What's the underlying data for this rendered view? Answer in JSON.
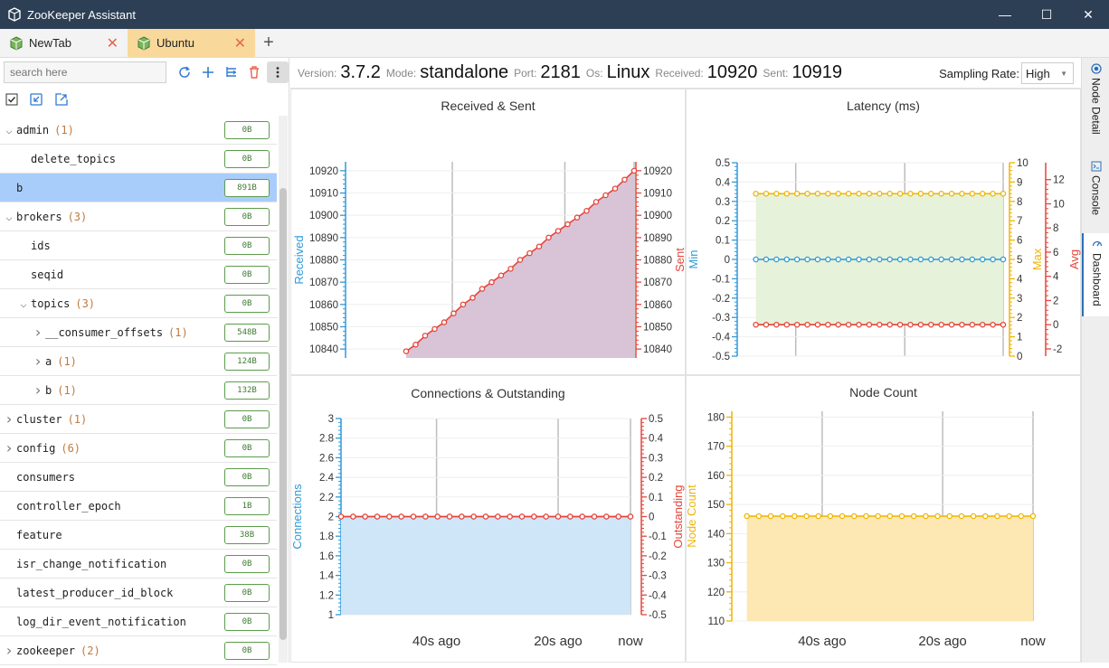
{
  "app": {
    "title": "ZooKeeper Assistant"
  },
  "window": {
    "minimize": "—",
    "maximize": "☐",
    "close": "✕"
  },
  "tabs": [
    {
      "label": "NewTab"
    },
    {
      "label": "Ubuntu"
    }
  ],
  "tab_add": "+",
  "sidebar": {
    "search_placeholder": "search here",
    "nodes": [
      {
        "name": "admin",
        "count": "(1)",
        "size": "0B",
        "level": 0,
        "chevron": "down"
      },
      {
        "name": "delete_topics",
        "count": "",
        "size": "0B",
        "level": 1,
        "chevron": ""
      },
      {
        "name": "b",
        "count": "",
        "size": "891B",
        "level": 0,
        "chevron": "",
        "selected": true
      },
      {
        "name": "brokers",
        "count": "(3)",
        "size": "0B",
        "level": 0,
        "chevron": "down"
      },
      {
        "name": "ids",
        "count": "",
        "size": "0B",
        "level": 1,
        "chevron": ""
      },
      {
        "name": "seqid",
        "count": "",
        "size": "0B",
        "level": 1,
        "chevron": ""
      },
      {
        "name": "topics",
        "count": "(3)",
        "size": "0B",
        "level": 1,
        "chevron": "down"
      },
      {
        "name": "__consumer_offsets",
        "count": "(1)",
        "size": "548B",
        "level": 2,
        "chevron": "right"
      },
      {
        "name": "a",
        "count": "(1)",
        "size": "124B",
        "level": 2,
        "chevron": "right"
      },
      {
        "name": "b",
        "count": "(1)",
        "size": "132B",
        "level": 2,
        "chevron": "right"
      },
      {
        "name": "cluster",
        "count": "(1)",
        "size": "0B",
        "level": 0,
        "chevron": "right"
      },
      {
        "name": "config",
        "count": "(6)",
        "size": "0B",
        "level": 0,
        "chevron": "right"
      },
      {
        "name": "consumers",
        "count": "",
        "size": "0B",
        "level": 0,
        "chevron": ""
      },
      {
        "name": "controller_epoch",
        "count": "",
        "size": "1B",
        "level": 0,
        "chevron": ""
      },
      {
        "name": "feature",
        "count": "",
        "size": "38B",
        "level": 0,
        "chevron": ""
      },
      {
        "name": "isr_change_notification",
        "count": "",
        "size": "0B",
        "level": 0,
        "chevron": ""
      },
      {
        "name": "latest_producer_id_block",
        "count": "",
        "size": "0B",
        "level": 0,
        "chevron": ""
      },
      {
        "name": "log_dir_event_notification",
        "count": "",
        "size": "0B",
        "level": 0,
        "chevron": ""
      },
      {
        "name": "zookeeper",
        "count": "(2)",
        "size": "0B",
        "level": 0,
        "chevron": "right"
      }
    ]
  },
  "info": {
    "version_label": "Version:",
    "version": "3.7.2",
    "mode_label": "Mode:",
    "mode": "standalone",
    "port_label": "Port:",
    "port": "2181",
    "os_label": "Os:",
    "os": "Linux",
    "received_label": "Received:",
    "received": "10920",
    "sent_label": "Sent:",
    "sent": "10919",
    "sampling_label": "Sampling Rate:",
    "sampling_value": "High"
  },
  "right_tabs": [
    {
      "label": "Node Detail"
    },
    {
      "label": "Console"
    },
    {
      "label": "Dashboard"
    }
  ],
  "colors": {
    "blue": "#2f9ad8",
    "red": "#e4463b",
    "orange": "#f0b400",
    "purple_fill": "#d9c3d6",
    "green_fill": "#e6f2d9",
    "blue_fill": "#cfe5f8",
    "orange_fill": "#fde8b4"
  },
  "chart_data": [
    {
      "type": "area",
      "title": "Received & Sent",
      "x_ticks": [
        "40s ago",
        "20s ago",
        "now"
      ],
      "left_axis": {
        "label": "Received",
        "ticks": [
          10840,
          10850,
          10860,
          10870,
          10880,
          10890,
          10900,
          10910,
          10920
        ],
        "range": [
          10836,
          10924
        ]
      },
      "right_axis": {
        "label": "Sent",
        "ticks": [
          10840,
          10850,
          10860,
          10870,
          10880,
          10890,
          10900,
          10910,
          10920
        ],
        "range": [
          10836,
          10924
        ]
      },
      "series": [
        {
          "name": "Received",
          "values": [
            10839,
            10842,
            10846,
            10849,
            10852,
            10856,
            10860,
            10863,
            10867,
            10870,
            10873,
            10876,
            10880,
            10883,
            10886,
            10890,
            10893,
            10896,
            10899,
            10902,
            10906,
            10909,
            10912,
            10916,
            10920
          ]
        }
      ]
    },
    {
      "type": "line",
      "title": "Latency (ms)",
      "x_ticks": [
        "40s ago",
        "20s ago",
        "now"
      ],
      "left_axis": {
        "label": "Min",
        "ticks": [
          -0.5,
          -0.4,
          -0.3,
          -0.2,
          -0.1,
          0,
          0.1,
          0.2,
          0.3,
          0.4,
          0.5
        ],
        "range": [
          -0.5,
          0.5
        ]
      },
      "right_axis": {
        "label": "Max",
        "ticks": [
          0,
          1,
          2,
          3,
          4,
          5,
          6,
          7,
          8,
          9,
          10
        ],
        "range": [
          0,
          10
        ]
      },
      "right_axis2": {
        "label": "Avg",
        "ticks": [
          -2,
          0,
          2,
          4,
          6,
          8,
          10,
          12
        ],
        "range": [
          -2.6,
          13.4
        ]
      },
      "series": [
        {
          "name": "Min",
          "value": 0,
          "count": 25
        },
        {
          "name": "Max",
          "value": 8.4,
          "count": 25
        },
        {
          "name": "Avg",
          "value": 0,
          "count": 25
        }
      ]
    },
    {
      "type": "area",
      "title": "Connections & Outstanding",
      "x_ticks": [
        "40s ago",
        "20s ago",
        "now"
      ],
      "left_axis": {
        "label": "Connections",
        "ticks": [
          1,
          1.2,
          1.4,
          1.6,
          1.8,
          2,
          2.2,
          2.4,
          2.6,
          2.8,
          3
        ],
        "range": [
          1,
          3
        ]
      },
      "right_axis": {
        "label": "Outstanding",
        "ticks": [
          -0.5,
          -0.4,
          -0.3,
          -0.2,
          -0.1,
          0,
          0.1,
          0.2,
          0.3,
          0.4,
          0.5
        ],
        "range": [
          -0.5,
          0.5
        ]
      },
      "series": [
        {
          "name": "Connections",
          "value": 2,
          "count": 25
        },
        {
          "name": "Outstanding",
          "value": 0,
          "count": 25
        }
      ]
    },
    {
      "type": "area",
      "title": "Node Count",
      "x_ticks": [
        "40s ago",
        "20s ago",
        "now"
      ],
      "left_axis": {
        "label": "Node Count",
        "ticks": [
          110,
          120,
          130,
          140,
          150,
          160,
          170,
          180
        ],
        "range": [
          110,
          182
        ]
      },
      "series": [
        {
          "name": "Node Count",
          "value": 146,
          "count": 25
        }
      ]
    }
  ]
}
